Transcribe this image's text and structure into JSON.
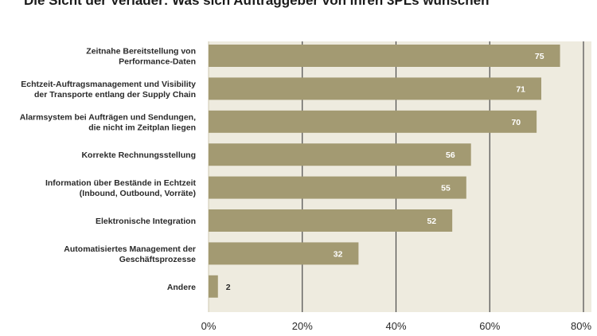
{
  "chart_data": {
    "type": "bar",
    "orientation": "horizontal",
    "title": "Die Sicht der Verlader: Was sich Auftraggeber von ihren 3PLs wünschen",
    "categories": [
      [
        "Zeitnahe Bereitstellung von",
        "Performance-Daten"
      ],
      [
        "Echtzeit-Auftragsmanagement und Visibility",
        "der Transporte entlang der Supply Chain"
      ],
      [
        "Alarmsystem bei Aufträgen und Sendungen,",
        "die nicht im Zeitplan liegen"
      ],
      [
        "Korrekte Rechnungsstellung"
      ],
      [
        "Information über Bestände in Echtzeit",
        "(Inbound, Outbound, Vorräte)"
      ],
      [
        "Elektronische Integration"
      ],
      [
        "Automatisiertes Management der",
        "Geschäftsprozesse"
      ],
      [
        "Andere"
      ]
    ],
    "values": [
      75,
      71,
      70,
      56,
      55,
      52,
      32,
      2
    ],
    "xlim": [
      0,
      80
    ],
    "xticks": [
      0,
      20,
      40,
      60,
      80
    ],
    "xtick_labels": [
      "0%",
      "20%",
      "40%",
      "60%",
      "80%"
    ],
    "grid": "vertical",
    "colors": {
      "bar": "#a39a72",
      "plot_bg": "#eeebdf",
      "grid": "#4a4a4a",
      "value_text_inside": "#ffffff",
      "value_text_outside": "#2a2a2a"
    }
  }
}
